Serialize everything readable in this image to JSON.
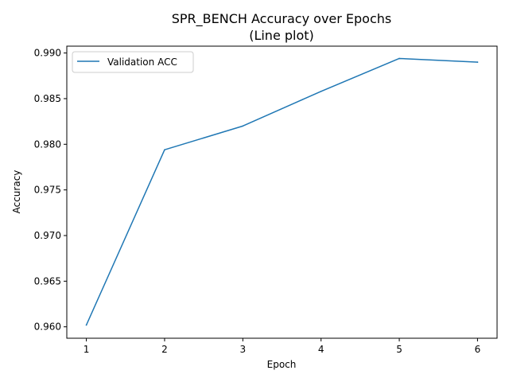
{
  "chart_data": {
    "type": "line",
    "title_line1": "SPR_BENCH Accuracy over Epochs",
    "title_line2": "(Line plot)",
    "xlabel": "Epoch",
    "ylabel": "Accuracy",
    "x": [
      1,
      2,
      3,
      4,
      5,
      6
    ],
    "series": [
      {
        "name": "Validation ACC",
        "values": [
          0.9602,
          0.9794,
          0.982,
          0.9858,
          0.9894,
          0.989
        ]
      }
    ],
    "xlim": [
      0.75,
      6.25
    ],
    "ylim": [
      0.95875,
      0.99075
    ],
    "xticks": [
      1,
      2,
      3,
      4,
      5,
      6
    ],
    "xtick_labels": [
      "1",
      "2",
      "3",
      "4",
      "5",
      "6"
    ],
    "yticks": [
      0.96,
      0.965,
      0.97,
      0.975,
      0.98,
      0.985,
      0.99
    ],
    "ytick_labels": [
      "0.960",
      "0.965",
      "0.970",
      "0.975",
      "0.980",
      "0.985",
      "0.990"
    ],
    "grid": false,
    "legend_position": "top-left",
    "line_color": "#1f77b4"
  }
}
